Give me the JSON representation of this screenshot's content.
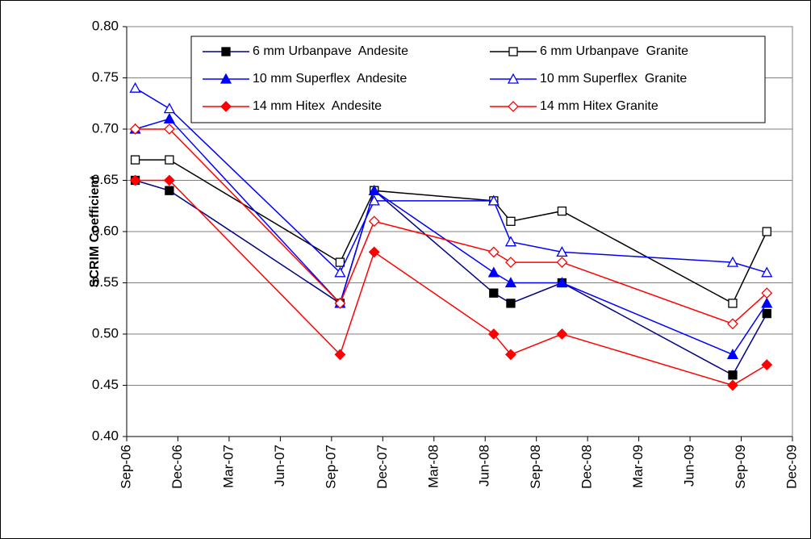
{
  "chart_data": {
    "type": "line",
    "ylabel": "SCRIM Coefficient",
    "x": [
      "2006-09",
      "2006-11",
      "2007-09",
      "2007-11",
      "2008-06",
      "2008-07",
      "2008-10",
      "2009-08",
      "2009-10"
    ],
    "xlim": [
      "2006-09",
      "2009-12"
    ],
    "xticks": [
      {
        "value": "2006-09",
        "label": "Sep-06"
      },
      {
        "value": "2006-12",
        "label": "Dec-06"
      },
      {
        "value": "2007-03",
        "label": "Mar-07"
      },
      {
        "value": "2007-06",
        "label": "Jun-07"
      },
      {
        "value": "2007-09",
        "label": "Sep-07"
      },
      {
        "value": "2007-12",
        "label": "Dec-07"
      },
      {
        "value": "2008-03",
        "label": "Mar-08"
      },
      {
        "value": "2008-06",
        "label": "Jun-08"
      },
      {
        "value": "2008-09",
        "label": "Sep-08"
      },
      {
        "value": "2008-12",
        "label": "Dec-08"
      },
      {
        "value": "2009-03",
        "label": "Mar-09"
      },
      {
        "value": "2009-06",
        "label": "Jun-09"
      },
      {
        "value": "2009-09",
        "label": "Sep-09"
      },
      {
        "value": "2009-12",
        "label": "Dec-09"
      }
    ],
    "ylim": [
      0.4,
      0.8
    ],
    "yticks": [
      {
        "value": 0.4,
        "label": "0.40"
      },
      {
        "value": 0.45,
        "label": "0.45"
      },
      {
        "value": 0.5,
        "label": "0.50"
      },
      {
        "value": 0.55,
        "label": "0.55"
      },
      {
        "value": 0.6,
        "label": "0.60"
      },
      {
        "value": 0.65,
        "label": "0.65"
      },
      {
        "value": 0.7,
        "label": "0.70"
      },
      {
        "value": 0.75,
        "label": "0.75"
      },
      {
        "value": 0.8,
        "label": "0.80"
      }
    ],
    "grid": true,
    "legend": "top",
    "series": [
      {
        "name": "6 mm Urbanpave  Andesite",
        "color": "#000080",
        "marker_color": "#000000",
        "marker": "square",
        "filled": true,
        "values": [
          0.65,
          0.64,
          0.53,
          0.64,
          0.54,
          0.53,
          0.55,
          0.46,
          0.52
        ]
      },
      {
        "name": "6 mm Urbanpave  Granite",
        "color": "#000000",
        "marker_color": "#000000",
        "marker": "square",
        "filled": false,
        "values": [
          0.67,
          0.67,
          0.57,
          0.64,
          0.63,
          0.61,
          0.62,
          0.53,
          0.6
        ]
      },
      {
        "name": "10 mm Superflex  Andesite",
        "color": "#0000ff",
        "marker_color": "#0000ff",
        "marker": "triangle",
        "filled": true,
        "values": [
          0.7,
          0.71,
          0.53,
          0.64,
          0.56,
          0.55,
          0.55,
          0.48,
          0.53
        ]
      },
      {
        "name": "10 mm Superflex  Granite",
        "color": "#0000ff",
        "marker_color": "#0000ff",
        "marker": "triangle",
        "filled": false,
        "values": [
          0.74,
          0.72,
          0.56,
          0.63,
          0.63,
          0.59,
          0.58,
          0.57,
          0.56
        ]
      },
      {
        "name": "14 mm Hitex  Andesite",
        "color": "#ff0000",
        "marker_color": "#ff0000",
        "marker": "diamond",
        "filled": true,
        "values": [
          0.65,
          0.65,
          0.48,
          0.58,
          0.5,
          0.48,
          0.5,
          0.45,
          0.47
        ]
      },
      {
        "name": "14 mm Hitex Granite",
        "color": "#ff0000",
        "marker_color": "#ff0000",
        "marker": "diamond",
        "filled": false,
        "values": [
          0.7,
          0.7,
          0.53,
          0.61,
          0.58,
          0.57,
          0.57,
          0.51,
          0.54
        ]
      }
    ]
  }
}
